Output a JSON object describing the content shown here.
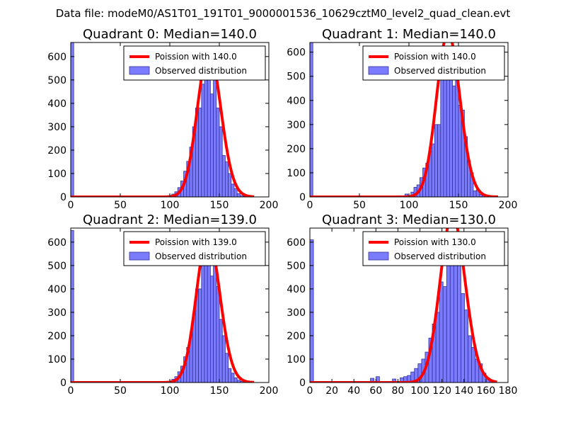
{
  "suptitle": "Data file: modeM0/AS1T01_191T01_9000001536_10629cztM0_level2_quad_clean.evt",
  "colors": {
    "bar_fill": "#7b7bff",
    "bar_edge": "#32329a",
    "curve": "#ff0000",
    "axis": "#000000"
  },
  "chart_data": [
    {
      "type": "bar",
      "title": "Quadrant 0: Median=140.0",
      "xlim": [
        0,
        200
      ],
      "ylim": [
        0,
        660
      ],
      "xticks": [
        0,
        50,
        100,
        150,
        200
      ],
      "yticks": [
        0,
        100,
        200,
        300,
        400,
        500,
        600
      ],
      "legend": {
        "curve_label": "Poission with 140.0",
        "bars_label": "Observed distribution",
        "location": "upper-right"
      },
      "bin_width": 3,
      "bins_x": [
        0,
        75,
        93,
        96,
        99,
        102,
        105,
        108,
        111,
        114,
        117,
        120,
        123,
        126,
        129,
        132,
        135,
        138,
        141,
        144,
        147,
        150,
        153,
        156,
        159,
        162,
        165,
        168,
        171,
        174,
        177
      ],
      "bins_y": [
        660,
        1,
        1,
        3,
        6,
        12,
        22,
        40,
        68,
        110,
        152,
        213,
        300,
        380,
        380,
        482,
        600,
        541,
        440,
        540,
        380,
        300,
        177,
        150,
        100,
        55,
        35,
        14,
        6,
        3,
        1
      ],
      "curve": {
        "mu": 140,
        "x_range": [
          0,
          185
        ]
      }
    },
    {
      "type": "bar",
      "title": "Quadrant 1: Median=140.0",
      "xlim": [
        0,
        200
      ],
      "ylim": [
        0,
        640
      ],
      "xticks": [
        0,
        50,
        100,
        150,
        200
      ],
      "yticks": [
        0,
        100,
        200,
        300,
        400,
        500,
        600
      ],
      "legend": {
        "curve_label": "Poission with 140.0",
        "bars_label": "Observed distribution",
        "location": "upper-right"
      },
      "bin_width": 3,
      "bins_x": [
        0,
        75,
        90,
        93,
        96,
        99,
        102,
        105,
        108,
        111,
        114,
        117,
        120,
        123,
        126,
        129,
        132,
        135,
        138,
        141,
        144,
        147,
        150,
        153,
        156,
        159,
        162,
        165,
        168,
        171,
        174,
        177
      ],
      "bins_y": [
        640,
        1,
        5,
        3,
        12,
        4,
        20,
        40,
        50,
        80,
        120,
        140,
        190,
        220,
        300,
        300,
        580,
        490,
        600,
        600,
        460,
        540,
        380,
        360,
        250,
        150,
        100,
        25,
        30,
        10,
        5,
        2
      ],
      "curve": {
        "mu": 140,
        "x_range": [
          0,
          190
        ]
      }
    },
    {
      "type": "bar",
      "title": "Quadrant 2: Median=139.0",
      "xlim": [
        0,
        200
      ],
      "ylim": [
        0,
        660
      ],
      "xticks": [
        0,
        50,
        100,
        150,
        200
      ],
      "yticks": [
        0,
        100,
        200,
        300,
        400,
        500,
        600
      ],
      "legend": {
        "curve_label": "Poission with 139.0",
        "bars_label": "Observed distribution",
        "location": "upper-right"
      },
      "bin_width": 3,
      "bins_x": [
        0,
        75,
        93,
        96,
        99,
        102,
        105,
        108,
        111,
        114,
        117,
        120,
        123,
        126,
        129,
        132,
        135,
        138,
        141,
        144,
        147,
        150,
        153,
        156,
        159,
        162,
        165,
        168,
        171,
        174,
        177
      ],
      "bins_y": [
        650,
        1,
        1,
        3,
        6,
        14,
        25,
        46,
        70,
        110,
        150,
        205,
        292,
        400,
        400,
        500,
        600,
        560,
        455,
        560,
        410,
        270,
        200,
        125,
        60,
        40,
        20,
        10,
        5,
        2,
        1
      ],
      "curve": {
        "mu": 139,
        "x_range": [
          0,
          185
        ]
      }
    },
    {
      "type": "bar",
      "title": "Quadrant 3: Median=130.0",
      "xlim": [
        0,
        180
      ],
      "ylim": [
        0,
        660
      ],
      "xticks": [
        0,
        20,
        40,
        60,
        80,
        100,
        120,
        140,
        160,
        180
      ],
      "yticks": [
        0,
        100,
        200,
        300,
        400,
        500,
        600
      ],
      "legend": {
        "curve_label": "Poission with 130.0",
        "bars_label": "Observed distribution",
        "location": "upper-right"
      },
      "bin_width": 3.25,
      "bins_x": [
        0,
        55,
        60,
        75,
        82,
        85.25,
        88.5,
        91.75,
        95,
        98.25,
        101.5,
        104.75,
        108,
        111.25,
        114.5,
        117.75,
        121,
        124.25,
        127.5,
        130.75,
        134,
        137.25,
        140.5,
        143.75,
        147,
        150.25,
        153.5,
        156.75,
        160,
        163.25,
        166.5
      ],
      "bins_y": [
        610,
        18,
        25,
        15,
        20,
        25,
        30,
        45,
        60,
        80,
        100,
        130,
        190,
        250,
        300,
        430,
        410,
        640,
        500,
        530,
        580,
        380,
        310,
        200,
        150,
        100,
        80,
        40,
        20,
        8,
        4
      ],
      "curve": {
        "mu": 130,
        "x_range": [
          0,
          170
        ]
      }
    }
  ]
}
